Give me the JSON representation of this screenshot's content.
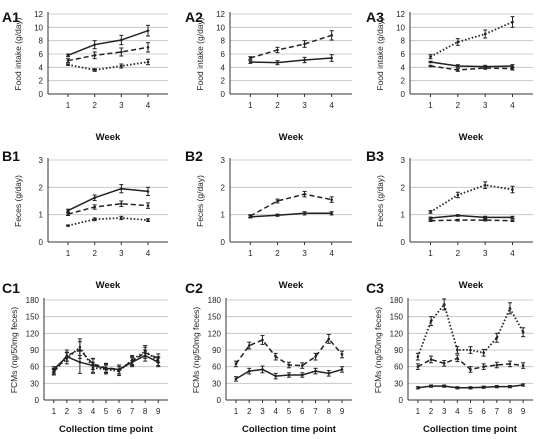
{
  "chart_data": [
    {
      "id": "A1",
      "type": "line",
      "xlabel": "Week",
      "ylabel": "Food intake (g/day)",
      "x": [
        1,
        2,
        3,
        4
      ],
      "ylim": [
        0,
        12
      ],
      "yticks": [
        0,
        2,
        4,
        6,
        8,
        10,
        12
      ],
      "xticks": [
        "1",
        "2",
        "3",
        "4"
      ],
      "grid": true,
      "series": [
        {
          "style": "solid",
          "values": [
            5.8,
            7.4,
            8.1,
            9.5
          ],
          "err": [
            0.2,
            0.6,
            0.7,
            0.8
          ]
        },
        {
          "style": "dashed",
          "values": [
            5.0,
            5.8,
            6.3,
            7.0
          ],
          "err": [
            0.3,
            0.5,
            0.6,
            0.7
          ]
        },
        {
          "style": "dotted",
          "values": [
            4.4,
            3.6,
            4.2,
            4.8
          ],
          "err": [
            0.1,
            0.2,
            0.3,
            0.4
          ]
        }
      ]
    },
    {
      "id": "A2",
      "type": "line",
      "xlabel": "Week",
      "ylabel": "Food intake (g/day)",
      "x": [
        1,
        2,
        3,
        4
      ],
      "ylim": [
        0,
        12
      ],
      "yticks": [
        0,
        2,
        4,
        6,
        8,
        10,
        12
      ],
      "xticks": [
        "1",
        "2",
        "3",
        "4"
      ],
      "grid": true,
      "series": [
        {
          "style": "solid",
          "values": [
            4.8,
            4.7,
            5.1,
            5.4
          ],
          "err": [
            0.2,
            0.3,
            0.4,
            0.5
          ]
        },
        {
          "style": "dashed",
          "values": [
            5.4,
            6.6,
            7.5,
            8.8
          ],
          "err": [
            0.2,
            0.4,
            0.5,
            0.7
          ]
        }
      ]
    },
    {
      "id": "A3",
      "type": "line",
      "xlabel": "Week",
      "ylabel": "Food intake (g/day)",
      "x": [
        1,
        2,
        3,
        4
      ],
      "ylim": [
        0,
        12
      ],
      "yticks": [
        0,
        2,
        4,
        6,
        8,
        10,
        12
      ],
      "xticks": [
        "1",
        "2",
        "3",
        "4"
      ],
      "grid": true,
      "series": [
        {
          "style": "dotted",
          "values": [
            5.6,
            7.8,
            9.0,
            10.8
          ],
          "err": [
            0.3,
            0.5,
            0.6,
            0.8
          ]
        },
        {
          "style": "solid",
          "values": [
            4.8,
            4.2,
            4.1,
            4.2
          ],
          "err": [
            0.1,
            0.2,
            0.2,
            0.2
          ]
        },
        {
          "style": "dashed",
          "values": [
            4.2,
            3.6,
            3.9,
            3.8
          ],
          "err": [
            0.1,
            0.2,
            0.2,
            0.2
          ]
        }
      ]
    },
    {
      "id": "B1",
      "type": "line",
      "xlabel": "Week",
      "ylabel": "Feces (g/day)",
      "x": [
        1,
        2,
        3,
        4
      ],
      "ylim": [
        0,
        3
      ],
      "yticks": [
        0,
        1,
        2,
        3
      ],
      "xticks": [
        "1",
        "2",
        "3",
        "4"
      ],
      "grid": true,
      "series": [
        {
          "style": "solid",
          "values": [
            1.15,
            1.62,
            1.95,
            1.85
          ],
          "err": [
            0.05,
            0.1,
            0.15,
            0.15
          ]
        },
        {
          "style": "dashed",
          "values": [
            1.02,
            1.28,
            1.4,
            1.33
          ],
          "err": [
            0.05,
            0.08,
            0.1,
            0.1
          ]
        },
        {
          "style": "dotted",
          "values": [
            0.6,
            0.83,
            0.88,
            0.8
          ],
          "err": [
            0.02,
            0.05,
            0.06,
            0.05
          ]
        }
      ]
    },
    {
      "id": "B2",
      "type": "line",
      "xlabel": "Week",
      "ylabel": "Feces (g/day)",
      "x": [
        1,
        2,
        3,
        4
      ],
      "ylim": [
        0,
        3
      ],
      "yticks": [
        0,
        1,
        2,
        3
      ],
      "xticks": [
        "1",
        "2",
        "3",
        "4"
      ],
      "grid": true,
      "series": [
        {
          "style": "dashed",
          "values": [
            0.95,
            1.5,
            1.75,
            1.55
          ],
          "err": [
            0.05,
            0.07,
            0.1,
            0.1
          ]
        },
        {
          "style": "solid",
          "values": [
            0.92,
            0.98,
            1.05,
            1.05
          ],
          "err": [
            0.04,
            0.04,
            0.06,
            0.06
          ]
        }
      ]
    },
    {
      "id": "B3",
      "type": "line",
      "xlabel": "Week",
      "ylabel": "Feces (g/day)",
      "x": [
        1,
        2,
        3,
        4
      ],
      "ylim": [
        0,
        3
      ],
      "yticks": [
        0,
        1,
        2,
        3
      ],
      "xticks": [
        "1",
        "2",
        "3",
        "4"
      ],
      "grid": true,
      "series": [
        {
          "style": "dotted",
          "values": [
            1.1,
            1.72,
            2.08,
            1.92
          ],
          "err": [
            0.05,
            0.1,
            0.12,
            0.12
          ]
        },
        {
          "style": "solid",
          "values": [
            0.88,
            0.97,
            0.9,
            0.9
          ],
          "err": [
            0.03,
            0.03,
            0.04,
            0.04
          ]
        },
        {
          "style": "dashed",
          "values": [
            0.78,
            0.8,
            0.8,
            0.78
          ],
          "err": [
            0.03,
            0.03,
            0.03,
            0.03
          ]
        }
      ]
    },
    {
      "id": "C1",
      "type": "line",
      "xlabel": "Collection time point",
      "ylabel": "FCMs (ng/50mg feces)",
      "x": [
        1,
        2,
        3,
        4,
        5,
        6,
        7,
        8,
        9
      ],
      "ylim": [
        0,
        180
      ],
      "yticks": [
        0,
        30,
        60,
        90,
        120,
        150,
        180
      ],
      "xticks": [
        "1",
        "2",
        "3",
        "4",
        "5",
        "6",
        "7",
        "8",
        "9"
      ],
      "grid": true,
      "series": [
        {
          "style": "solid",
          "values": [
            55,
            78,
            68,
            62,
            57,
            55,
            68,
            80,
            68
          ],
          "err": [
            5,
            8,
            20,
            12,
            8,
            8,
            8,
            10,
            8
          ]
        },
        {
          "style": "dashed",
          "values": [
            50,
            80,
            90,
            65,
            58,
            55,
            70,
            85,
            75
          ],
          "err": [
            5,
            10,
            15,
            10,
            8,
            8,
            8,
            10,
            8
          ]
        },
        {
          "style": "dotted",
          "values": [
            52,
            75,
            95,
            58,
            55,
            52,
            72,
            88,
            70
          ],
          "err": [
            5,
            10,
            15,
            10,
            8,
            8,
            8,
            10,
            8
          ]
        }
      ]
    },
    {
      "id": "C2",
      "type": "line",
      "xlabel": "Collection time point",
      "ylabel": "FCMs (ng/50mg feces)",
      "x": [
        1,
        2,
        3,
        4,
        5,
        6,
        7,
        8,
        9
      ],
      "ylim": [
        0,
        180
      ],
      "yticks": [
        0,
        30,
        60,
        90,
        120,
        150,
        180
      ],
      "xticks": [
        "1",
        "2",
        "3",
        "4",
        "5",
        "6",
        "7",
        "8",
        "9"
      ],
      "grid": true,
      "series": [
        {
          "style": "dashed",
          "values": [
            65,
            98,
            108,
            78,
            63,
            62,
            78,
            110,
            82
          ],
          "err": [
            5,
            6,
            8,
            6,
            5,
            5,
            6,
            8,
            6
          ]
        },
        {
          "style": "solid",
          "values": [
            38,
            52,
            55,
            43,
            45,
            45,
            52,
            48,
            55
          ],
          "err": [
            4,
            5,
            6,
            5,
            4,
            4,
            5,
            5,
            5
          ]
        }
      ]
    },
    {
      "id": "C3",
      "type": "line",
      "xlabel": "Collection time point",
      "ylabel": "FCMs (ng/50mg feces)",
      "x": [
        1,
        2,
        3,
        4,
        5,
        6,
        7,
        8,
        9
      ],
      "ylim": [
        0,
        180
      ],
      "yticks": [
        0,
        30,
        60,
        90,
        120,
        150,
        180
      ],
      "xticks": [
        "1",
        "2",
        "3",
        "4",
        "5",
        "6",
        "7",
        "8",
        "9"
      ],
      "grid": true,
      "series": [
        {
          "style": "dotted",
          "values": [
            78,
            142,
            172,
            90,
            90,
            85,
            112,
            165,
            122
          ],
          "err": [
            6,
            8,
            10,
            6,
            6,
            6,
            8,
            10,
            8
          ]
        },
        {
          "style": "dashed",
          "values": [
            60,
            73,
            66,
            75,
            55,
            60,
            63,
            65,
            62
          ],
          "err": [
            5,
            6,
            5,
            6,
            5,
            5,
            5,
            5,
            5
          ]
        },
        {
          "style": "solid",
          "values": [
            22,
            25,
            25,
            22,
            22,
            23,
            24,
            24,
            27
          ],
          "err": [
            2,
            2,
            2,
            2,
            2,
            2,
            2,
            2,
            2
          ]
        }
      ]
    }
  ]
}
